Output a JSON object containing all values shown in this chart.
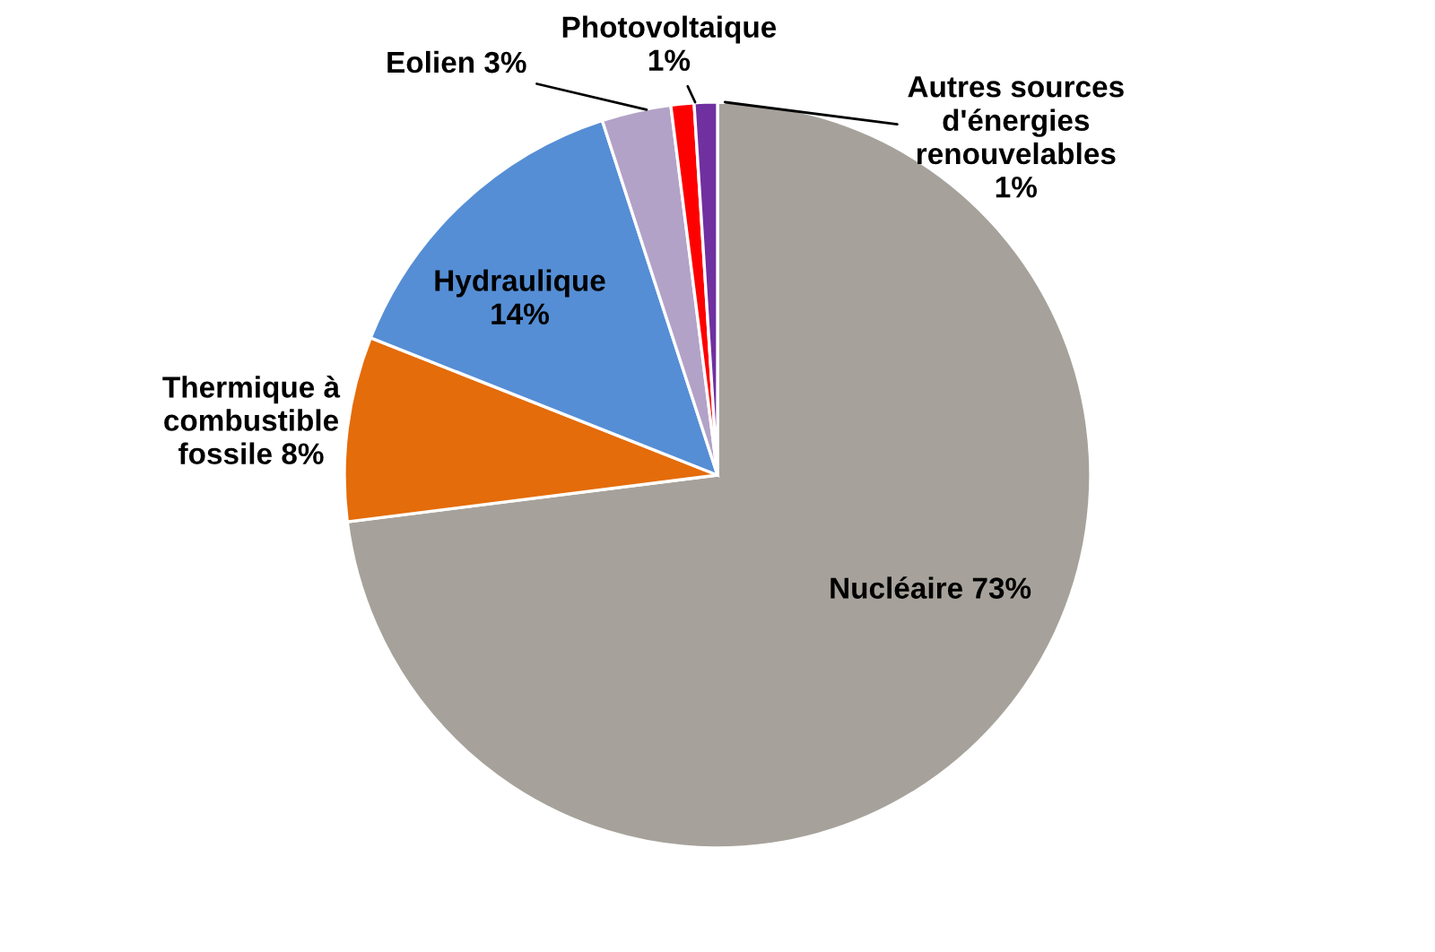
{
  "chart_data": {
    "type": "pie",
    "categories": [
      "Nucléaire",
      "Thermique à combustible fossile",
      "Hydraulique",
      "Eolien",
      "Photovoltaique",
      "Autres sources d'énergies renouvelables"
    ],
    "values": [
      73,
      8,
      14,
      3,
      1,
      1
    ],
    "value_labels": [
      "73%",
      "8%",
      "14%",
      "3%",
      "1%",
      "1%"
    ],
    "colors": [
      "#a6a29b",
      "#e46c0a",
      "#558ed5",
      "#b3a2c7",
      "#ff0000",
      "#7030a0"
    ],
    "legend": false
  }
}
